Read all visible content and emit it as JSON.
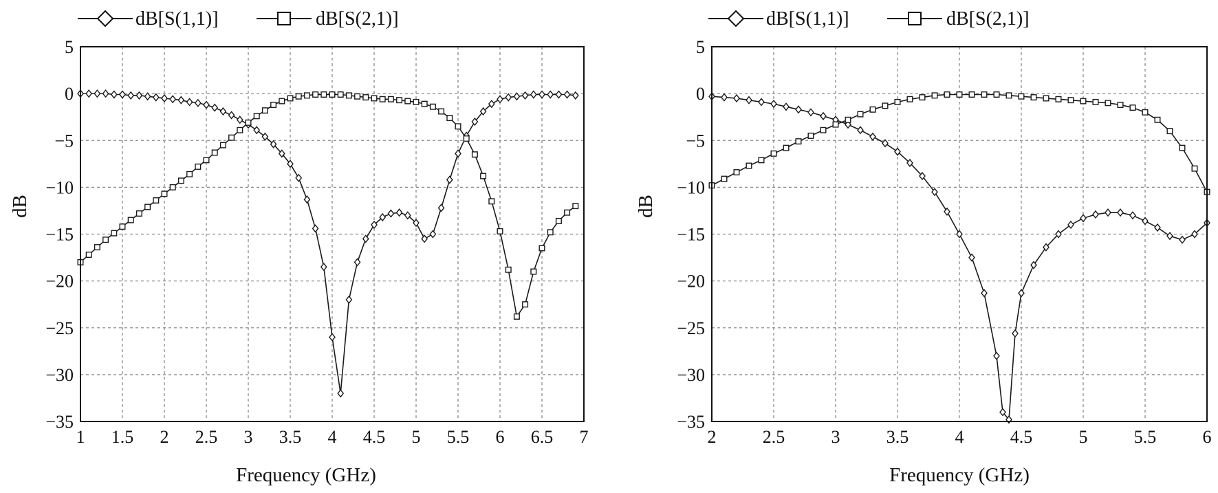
{
  "chart_data": [
    {
      "type": "line",
      "title": "",
      "xlabel": "Frequency (GHz)",
      "ylabel": "dB",
      "xlim": [
        1,
        7
      ],
      "ylim": [
        -35,
        5
      ],
      "xticks": [
        "1",
        "1.5",
        "2",
        "2.5",
        "3",
        "3.5",
        "4",
        "4.5",
        "5",
        "5.5",
        "6",
        "6.5",
        "7"
      ],
      "yticks": [
        "5",
        "0",
        "−5",
        "−10",
        "−15",
        "−20",
        "−25",
        "−30",
        "−35"
      ],
      "grid": true,
      "legend_position": "top",
      "series": [
        {
          "name": "dB[S(1,1)]",
          "marker": "diamond",
          "points": [
            [
              1.0,
              0.0
            ],
            [
              1.1,
              0.0
            ],
            [
              1.2,
              0.0
            ],
            [
              1.3,
              0.0
            ],
            [
              1.4,
              -0.1
            ],
            [
              1.5,
              -0.1
            ],
            [
              1.6,
              -0.2
            ],
            [
              1.7,
              -0.2
            ],
            [
              1.8,
              -0.3
            ],
            [
              1.9,
              -0.4
            ],
            [
              2.0,
              -0.5
            ],
            [
              2.1,
              -0.6
            ],
            [
              2.2,
              -0.7
            ],
            [
              2.3,
              -0.9
            ],
            [
              2.4,
              -1.0
            ],
            [
              2.5,
              -1.2
            ],
            [
              2.6,
              -1.5
            ],
            [
              2.7,
              -1.9
            ],
            [
              2.8,
              -2.3
            ],
            [
              2.9,
              -2.8
            ],
            [
              3.0,
              -3.3
            ],
            [
              3.1,
              -3.9
            ],
            [
              3.2,
              -4.6
            ],
            [
              3.3,
              -5.4
            ],
            [
              3.4,
              -6.4
            ],
            [
              3.5,
              -7.5
            ],
            [
              3.6,
              -9.0
            ],
            [
              3.7,
              -11.3
            ],
            [
              3.8,
              -14.4
            ],
            [
              3.9,
              -18.5
            ],
            [
              4.0,
              -26.0
            ],
            [
              4.1,
              -32.0
            ],
            [
              4.2,
              -22.0
            ],
            [
              4.3,
              -18.0
            ],
            [
              4.4,
              -15.5
            ],
            [
              4.5,
              -14.0
            ],
            [
              4.6,
              -13.2
            ],
            [
              4.7,
              -12.8
            ],
            [
              4.8,
              -12.7
            ],
            [
              4.9,
              -13.0
            ],
            [
              5.0,
              -13.8
            ],
            [
              5.1,
              -15.5
            ],
            [
              5.2,
              -15.0
            ],
            [
              5.3,
              -12.2
            ],
            [
              5.4,
              -9.2
            ],
            [
              5.5,
              -6.4
            ],
            [
              5.6,
              -4.5
            ],
            [
              5.7,
              -3.0
            ],
            [
              5.8,
              -1.9
            ],
            [
              5.9,
              -1.1
            ],
            [
              6.0,
              -0.6
            ],
            [
              6.1,
              -0.4
            ],
            [
              6.2,
              -0.3
            ],
            [
              6.3,
              -0.2
            ],
            [
              6.4,
              -0.1
            ],
            [
              6.5,
              -0.1
            ],
            [
              6.6,
              -0.1
            ],
            [
              6.7,
              -0.1
            ],
            [
              6.8,
              -0.1
            ],
            [
              6.9,
              -0.2
            ]
          ]
        },
        {
          "name": "dB[S(2,1)]",
          "marker": "square",
          "points": [
            [
              1.0,
              -18.0
            ],
            [
              1.1,
              -17.2
            ],
            [
              1.2,
              -16.4
            ],
            [
              1.3,
              -15.6
            ],
            [
              1.4,
              -14.9
            ],
            [
              1.5,
              -14.2
            ],
            [
              1.6,
              -13.5
            ],
            [
              1.7,
              -12.8
            ],
            [
              1.8,
              -12.1
            ],
            [
              1.9,
              -11.4
            ],
            [
              2.0,
              -10.7
            ],
            [
              2.1,
              -10.0
            ],
            [
              2.2,
              -9.3
            ],
            [
              2.3,
              -8.6
            ],
            [
              2.4,
              -7.8
            ],
            [
              2.5,
              -7.1
            ],
            [
              2.6,
              -6.3
            ],
            [
              2.7,
              -5.5
            ],
            [
              2.8,
              -4.7
            ],
            [
              2.9,
              -3.9
            ],
            [
              3.0,
              -3.1
            ],
            [
              3.1,
              -2.4
            ],
            [
              3.2,
              -1.8
            ],
            [
              3.3,
              -1.2
            ],
            [
              3.4,
              -0.8
            ],
            [
              3.5,
              -0.5
            ],
            [
              3.6,
              -0.3
            ],
            [
              3.7,
              -0.2
            ],
            [
              3.8,
              -0.1
            ],
            [
              3.9,
              -0.1
            ],
            [
              4.0,
              -0.1
            ],
            [
              4.1,
              -0.1
            ],
            [
              4.2,
              -0.2
            ],
            [
              4.3,
              -0.3
            ],
            [
              4.4,
              -0.4
            ],
            [
              4.5,
              -0.5
            ],
            [
              4.6,
              -0.6
            ],
            [
              4.7,
              -0.6
            ],
            [
              4.8,
              -0.7
            ],
            [
              4.9,
              -0.8
            ],
            [
              5.0,
              -0.9
            ],
            [
              5.1,
              -1.1
            ],
            [
              5.2,
              -1.4
            ],
            [
              5.3,
              -1.9
            ],
            [
              5.4,
              -2.6
            ],
            [
              5.5,
              -3.5
            ],
            [
              5.6,
              -4.8
            ],
            [
              5.7,
              -6.5
            ],
            [
              5.8,
              -8.8
            ],
            [
              5.9,
              -11.5
            ],
            [
              6.0,
              -14.7
            ],
            [
              6.1,
              -18.8
            ],
            [
              6.2,
              -23.8
            ],
            [
              6.3,
              -22.5
            ],
            [
              6.4,
              -19.0
            ],
            [
              6.5,
              -16.5
            ],
            [
              6.6,
              -14.8
            ],
            [
              6.7,
              -13.6
            ],
            [
              6.8,
              -12.7
            ],
            [
              6.9,
              -12.0
            ]
          ]
        }
      ]
    },
    {
      "type": "line",
      "title": "",
      "xlabel": "Frequency (GHz)",
      "ylabel": "dB",
      "xlim": [
        2,
        6
      ],
      "ylim": [
        -35,
        5
      ],
      "xticks": [
        "2",
        "2.5",
        "3",
        "3.5",
        "4",
        "4.5",
        "5",
        "5.5",
        "6"
      ],
      "yticks": [
        "5",
        "0",
        "−5",
        "−10",
        "−15",
        "−20",
        "−25",
        "−30",
        "−35"
      ],
      "grid": true,
      "legend_position": "top",
      "series": [
        {
          "name": "dB[S(1,1)]",
          "marker": "diamond",
          "points": [
            [
              2.0,
              -0.3
            ],
            [
              2.1,
              -0.4
            ],
            [
              2.2,
              -0.5
            ],
            [
              2.3,
              -0.7
            ],
            [
              2.4,
              -0.9
            ],
            [
              2.5,
              -1.1
            ],
            [
              2.6,
              -1.4
            ],
            [
              2.7,
              -1.7
            ],
            [
              2.8,
              -2.0
            ],
            [
              2.9,
              -2.4
            ],
            [
              3.0,
              -2.8
            ],
            [
              3.1,
              -3.3
            ],
            [
              3.2,
              -3.9
            ],
            [
              3.3,
              -4.6
            ],
            [
              3.4,
              -5.3
            ],
            [
              3.5,
              -6.2
            ],
            [
              3.6,
              -7.4
            ],
            [
              3.7,
              -8.8
            ],
            [
              3.8,
              -10.5
            ],
            [
              3.9,
              -12.6
            ],
            [
              4.0,
              -15.0
            ],
            [
              4.1,
              -17.5
            ],
            [
              4.2,
              -21.3
            ],
            [
              4.3,
              -28.0
            ],
            [
              4.35,
              -34.0
            ],
            [
              4.4,
              -34.8
            ],
            [
              4.45,
              -25.6
            ],
            [
              4.5,
              -21.3
            ],
            [
              4.6,
              -18.3
            ],
            [
              4.7,
              -16.4
            ],
            [
              4.8,
              -15.0
            ],
            [
              4.9,
              -14.0
            ],
            [
              5.0,
              -13.3
            ],
            [
              5.1,
              -12.9
            ],
            [
              5.2,
              -12.7
            ],
            [
              5.3,
              -12.7
            ],
            [
              5.4,
              -13.0
            ],
            [
              5.5,
              -13.6
            ],
            [
              5.6,
              -14.3
            ],
            [
              5.7,
              -15.2
            ],
            [
              5.8,
              -15.6
            ],
            [
              5.9,
              -15.0
            ],
            [
              6.0,
              -13.8
            ]
          ]
        },
        {
          "name": "dB[S(2,1)]",
          "marker": "square",
          "points": [
            [
              2.0,
              -9.8
            ],
            [
              2.1,
              -9.1
            ],
            [
              2.2,
              -8.4
            ],
            [
              2.3,
              -7.7
            ],
            [
              2.4,
              -7.1
            ],
            [
              2.5,
              -6.4
            ],
            [
              2.6,
              -5.8
            ],
            [
              2.7,
              -5.1
            ],
            [
              2.8,
              -4.5
            ],
            [
              2.9,
              -3.9
            ],
            [
              3.0,
              -3.3
            ],
            [
              3.1,
              -2.8
            ],
            [
              3.2,
              -2.2
            ],
            [
              3.3,
              -1.7
            ],
            [
              3.4,
              -1.3
            ],
            [
              3.5,
              -0.9
            ],
            [
              3.6,
              -0.6
            ],
            [
              3.7,
              -0.4
            ],
            [
              3.8,
              -0.2
            ],
            [
              3.9,
              -0.1
            ],
            [
              4.0,
              -0.1
            ],
            [
              4.1,
              -0.1
            ],
            [
              4.2,
              -0.1
            ],
            [
              4.3,
              -0.1
            ],
            [
              4.4,
              -0.2
            ],
            [
              4.5,
              -0.3
            ],
            [
              4.6,
              -0.4
            ],
            [
              4.7,
              -0.5
            ],
            [
              4.8,
              -0.6
            ],
            [
              4.9,
              -0.7
            ],
            [
              5.0,
              -0.8
            ],
            [
              5.1,
              -0.9
            ],
            [
              5.2,
              -1.0
            ],
            [
              5.3,
              -1.2
            ],
            [
              5.4,
              -1.5
            ],
            [
              5.5,
              -2.0
            ],
            [
              5.6,
              -2.8
            ],
            [
              5.7,
              -4.0
            ],
            [
              5.8,
              -5.8
            ],
            [
              5.9,
              -8.0
            ],
            [
              6.0,
              -10.5
            ]
          ]
        }
      ]
    }
  ]
}
